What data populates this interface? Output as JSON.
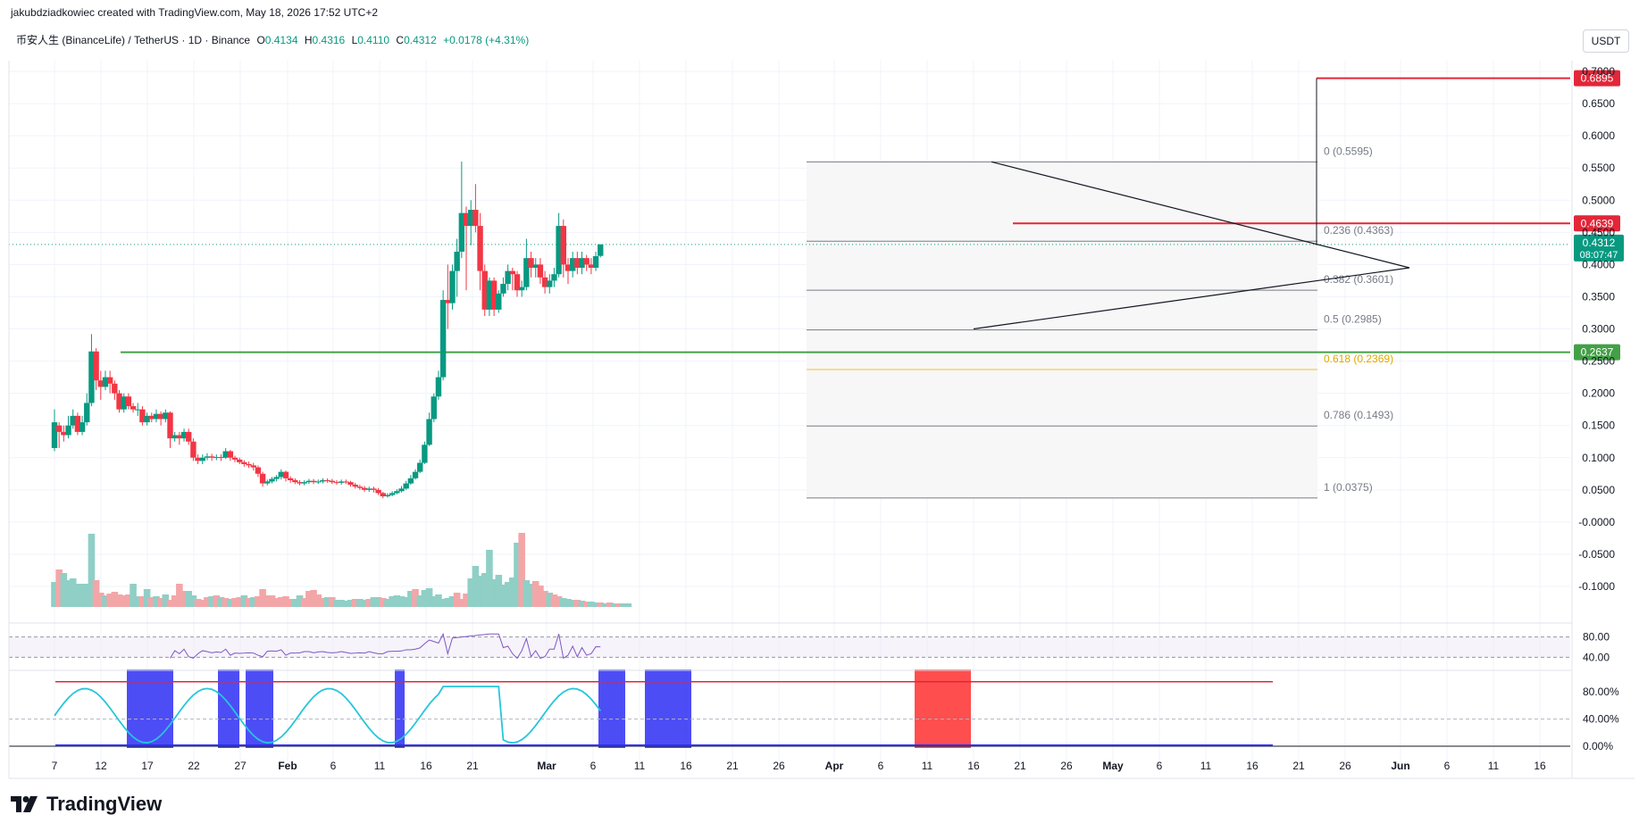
{
  "header": {
    "attribution": "jakubdziadkowiec created with TradingView.com, May 18, 2026 17:52 UTC+2"
  },
  "symbol": {
    "name": "币安人生 (BinanceLife) / TetherUS · 1D · Binance",
    "o_label": "O",
    "o": "0.4134",
    "h_label": "H",
    "h": "0.4316",
    "l_label": "L",
    "l": "0.4110",
    "c_label": "C",
    "c": "0.4312",
    "change": "+0.0178 (+4.31%)"
  },
  "currency": "USDT",
  "logo_text": "TradingView",
  "colors": {
    "up": "#26a69a",
    "up_body": "#089981",
    "down": "#f23645",
    "volume_up": "#8fcfc6",
    "volume_down": "#f3a6a8",
    "fib_gold": "#f2c12e",
    "resistance_red": "#e32638",
    "support_green": "#43a047",
    "rsi_line": "#7e57c2",
    "rsi_ma": "#f5c542",
    "osc_blue_band": "#2e2ef5",
    "osc_red_band": "#ff3b3b"
  },
  "chart_data": [
    {
      "type": "candlestick",
      "title": "",
      "x_ticks": [
        "7",
        "12",
        "17",
        "22",
        "27",
        "Feb",
        "6",
        "11",
        "16",
        "21",
        "Mar",
        "6",
        "11",
        "16",
        "21",
        "26",
        "Apr",
        "6",
        "11",
        "16",
        "21",
        "26",
        "May",
        "6",
        "11",
        "16",
        "21",
        "26",
        "Jun",
        "6",
        "11",
        "16"
      ],
      "y_ticks": [
        "0.7000",
        "0.6500",
        "0.6000",
        "0.5500",
        "0.5000",
        "0.4500",
        "0.4000",
        "0.3500",
        "0.3000",
        "0.2500",
        "0.2000",
        "0.1500",
        "0.1000",
        "0.0500",
        "-0.0000",
        "-0.0500",
        "-0.1000"
      ],
      "ylim": [
        -0.118,
        0.72
      ],
      "last_price": "0.4312",
      "countdown": "08:07:47",
      "price_levels": [
        {
          "value": 0.6895,
          "label": "0.6895",
          "color": "#e32638"
        },
        {
          "value": 0.4639,
          "label": "0.4639",
          "color": "#e32638"
        },
        {
          "value": 0.2637,
          "label": "0.2637",
          "color": "#43a047"
        }
      ],
      "fib_levels": [
        {
          "label": "0 (0.5595)",
          "value": 0.5595
        },
        {
          "label": "0.236 (0.4363)",
          "value": 0.4363
        },
        {
          "label": "0.382 (0.3601)",
          "value": 0.3601
        },
        {
          "label": "0.5 (0.2985)",
          "value": 0.2985
        },
        {
          "label": "0.618 (0.2369)",
          "value": 0.2369
        },
        {
          "label": "0.786 (0.1493)",
          "value": 0.1493
        },
        {
          "label": "1 (0.0375)",
          "value": 0.0375
        }
      ],
      "candles": [
        [
          0.115,
          0.155,
          0.175,
          0.11
        ],
        [
          0.15,
          0.14,
          0.155,
          0.115
        ],
        [
          0.14,
          0.135,
          0.15,
          0.125
        ],
        [
          0.135,
          0.15,
          0.165,
          0.13
        ],
        [
          0.15,
          0.165,
          0.175,
          0.145
        ],
        [
          0.165,
          0.14,
          0.17,
          0.135
        ],
        [
          0.14,
          0.155,
          0.165,
          0.135
        ],
        [
          0.155,
          0.185,
          0.2,
          0.15
        ],
        [
          0.185,
          0.265,
          0.292,
          0.18
        ],
        [
          0.265,
          0.22,
          0.27,
          0.205
        ],
        [
          0.22,
          0.21,
          0.235,
          0.19
        ],
        [
          0.21,
          0.225,
          0.235,
          0.205
        ],
        [
          0.225,
          0.215,
          0.235,
          0.2
        ],
        [
          0.215,
          0.2,
          0.22,
          0.19
        ],
        [
          0.2,
          0.175,
          0.205,
          0.17
        ],
        [
          0.175,
          0.195,
          0.2,
          0.17
        ],
        [
          0.195,
          0.18,
          0.2,
          0.175
        ],
        [
          0.18,
          0.175,
          0.185,
          0.17
        ],
        [
          0.175,
          0.175,
          0.185,
          0.165
        ],
        [
          0.175,
          0.155,
          0.18,
          0.15
        ],
        [
          0.155,
          0.165,
          0.17,
          0.15
        ],
        [
          0.165,
          0.16,
          0.17,
          0.155
        ],
        [
          0.16,
          0.168,
          0.175,
          0.155
        ],
        [
          0.168,
          0.16,
          0.172,
          0.15
        ],
        [
          0.16,
          0.17,
          0.175,
          0.155
        ],
        [
          0.17,
          0.13,
          0.172,
          0.115
        ],
        [
          0.13,
          0.135,
          0.14,
          0.125
        ],
        [
          0.135,
          0.13,
          0.14,
          0.12
        ],
        [
          0.13,
          0.14,
          0.145,
          0.125
        ],
        [
          0.14,
          0.125,
          0.145,
          0.12
        ],
        [
          0.125,
          0.1,
          0.13,
          0.095
        ],
        [
          0.1,
          0.095,
          0.105,
          0.09
        ],
        [
          0.095,
          0.1,
          0.105,
          0.09
        ],
        [
          0.1,
          0.102,
          0.107,
          0.096
        ],
        [
          0.102,
          0.1,
          0.106,
          0.095
        ],
        [
          0.1,
          0.101,
          0.105,
          0.096
        ],
        [
          0.101,
          0.1,
          0.105,
          0.095
        ],
        [
          0.1,
          0.11,
          0.115,
          0.098
        ],
        [
          0.11,
          0.1,
          0.112,
          0.095
        ],
        [
          0.1,
          0.097,
          0.103,
          0.093
        ],
        [
          0.097,
          0.093,
          0.1,
          0.09
        ],
        [
          0.093,
          0.09,
          0.096,
          0.086
        ],
        [
          0.09,
          0.088,
          0.094,
          0.084
        ],
        [
          0.088,
          0.085,
          0.092,
          0.08
        ],
        [
          0.085,
          0.075,
          0.088,
          0.07
        ],
        [
          0.075,
          0.06,
          0.078,
          0.055
        ],
        [
          0.06,
          0.063,
          0.066,
          0.057
        ],
        [
          0.063,
          0.067,
          0.07,
          0.06
        ],
        [
          0.067,
          0.07,
          0.073,
          0.063
        ],
        [
          0.07,
          0.078,
          0.082,
          0.066
        ],
        [
          0.078,
          0.068,
          0.08,
          0.063
        ],
        [
          0.068,
          0.065,
          0.071,
          0.061
        ],
        [
          0.065,
          0.062,
          0.068,
          0.059
        ],
        [
          0.062,
          0.06,
          0.065,
          0.057
        ],
        [
          0.06,
          0.062,
          0.065,
          0.057
        ],
        [
          0.062,
          0.064,
          0.067,
          0.059
        ],
        [
          0.064,
          0.062,
          0.067,
          0.059
        ],
        [
          0.062,
          0.063,
          0.066,
          0.059
        ],
        [
          0.063,
          0.065,
          0.068,
          0.06
        ],
        [
          0.065,
          0.064,
          0.068,
          0.061
        ],
        [
          0.064,
          0.062,
          0.067,
          0.059
        ],
        [
          0.062,
          0.061,
          0.065,
          0.058
        ],
        [
          0.061,
          0.063,
          0.066,
          0.058
        ],
        [
          0.063,
          0.062,
          0.066,
          0.059
        ],
        [
          0.062,
          0.058,
          0.064,
          0.055
        ],
        [
          0.058,
          0.055,
          0.061,
          0.052
        ],
        [
          0.055,
          0.053,
          0.058,
          0.05
        ],
        [
          0.053,
          0.05,
          0.056,
          0.047
        ],
        [
          0.05,
          0.052,
          0.055,
          0.047
        ],
        [
          0.052,
          0.05,
          0.055,
          0.046
        ],
        [
          0.05,
          0.045,
          0.053,
          0.042
        ],
        [
          0.045,
          0.04,
          0.047,
          0.037
        ],
        [
          0.04,
          0.042,
          0.045,
          0.038
        ],
        [
          0.042,
          0.045,
          0.048,
          0.04
        ],
        [
          0.045,
          0.048,
          0.051,
          0.043
        ],
        [
          0.048,
          0.052,
          0.056,
          0.046
        ],
        [
          0.052,
          0.06,
          0.064,
          0.05
        ],
        [
          0.06,
          0.068,
          0.073,
          0.058
        ],
        [
          0.068,
          0.078,
          0.082,
          0.066
        ],
        [
          0.078,
          0.092,
          0.097,
          0.076
        ],
        [
          0.092,
          0.12,
          0.125,
          0.09
        ],
        [
          0.12,
          0.16,
          0.17,
          0.118
        ],
        [
          0.16,
          0.195,
          0.2,
          0.155
        ],
        [
          0.195,
          0.225,
          0.235,
          0.19
        ],
        [
          0.225,
          0.345,
          0.36,
          0.22
        ],
        [
          0.345,
          0.34,
          0.4,
          0.3
        ],
        [
          0.34,
          0.39,
          0.4,
          0.33
        ],
        [
          0.39,
          0.42,
          0.44,
          0.35
        ],
        [
          0.42,
          0.48,
          0.56,
          0.41
        ],
        [
          0.48,
          0.46,
          0.49,
          0.36
        ],
        [
          0.46,
          0.485,
          0.5,
          0.43
        ],
        [
          0.485,
          0.46,
          0.525,
          0.45
        ],
        [
          0.46,
          0.39,
          0.48,
          0.36
        ],
        [
          0.39,
          0.33,
          0.4,
          0.32
        ],
        [
          0.33,
          0.375,
          0.38,
          0.32
        ],
        [
          0.375,
          0.33,
          0.38,
          0.32
        ],
        [
          0.33,
          0.355,
          0.36,
          0.325
        ],
        [
          0.355,
          0.37,
          0.38,
          0.35
        ],
        [
          0.37,
          0.39,
          0.4,
          0.36
        ],
        [
          0.39,
          0.385,
          0.395,
          0.36
        ],
        [
          0.385,
          0.36,
          0.39,
          0.35
        ],
        [
          0.36,
          0.365,
          0.375,
          0.35
        ],
        [
          0.365,
          0.41,
          0.44,
          0.36
        ],
        [
          0.41,
          0.395,
          0.42,
          0.38
        ],
        [
          0.395,
          0.4,
          0.41,
          0.38
        ],
        [
          0.4,
          0.38,
          0.41,
          0.37
        ],
        [
          0.38,
          0.365,
          0.39,
          0.355
        ],
        [
          0.365,
          0.375,
          0.385,
          0.355
        ],
        [
          0.375,
          0.385,
          0.395,
          0.365
        ],
        [
          0.385,
          0.46,
          0.48,
          0.38
        ],
        [
          0.46,
          0.4,
          0.47,
          0.38
        ],
        [
          0.4,
          0.39,
          0.41,
          0.37
        ],
        [
          0.39,
          0.41,
          0.42,
          0.38
        ],
        [
          0.41,
          0.395,
          0.42,
          0.385
        ],
        [
          0.395,
          0.41,
          0.42,
          0.385
        ],
        [
          0.41,
          0.4,
          0.415,
          0.39
        ],
        [
          0.4,
          0.395,
          0.41,
          0.385
        ],
        [
          0.395,
          0.413,
          0.42,
          0.39
        ],
        [
          0.4134,
          0.4312,
          0.4316,
          0.411
        ]
      ],
      "volumes": [
        [
          0.28,
          1
        ],
        [
          0.42,
          0
        ],
        [
          0.38,
          1
        ],
        [
          0.3,
          1
        ],
        [
          0.32,
          1
        ],
        [
          0.26,
          1
        ],
        [
          0.26,
          1
        ],
        [
          0.26,
          1
        ],
        [
          0.82,
          1
        ],
        [
          0.3,
          0
        ],
        [
          0.16,
          0
        ],
        [
          0.13,
          1
        ],
        [
          0.15,
          0
        ],
        [
          0.17,
          0
        ],
        [
          0.14,
          0
        ],
        [
          0.13,
          0
        ],
        [
          0.14,
          0
        ],
        [
          0.26,
          1
        ],
        [
          0.12,
          1
        ],
        [
          0.12,
          0
        ],
        [
          0.2,
          1
        ],
        [
          0.11,
          0
        ],
        [
          0.12,
          1
        ],
        [
          0.1,
          0
        ],
        [
          0.14,
          1
        ],
        [
          0.08,
          0
        ],
        [
          0.13,
          0
        ],
        [
          0.26,
          0
        ],
        [
          0.18,
          0
        ],
        [
          0.18,
          1
        ],
        [
          0.13,
          1
        ],
        [
          0.09,
          0
        ],
        [
          0.08,
          0
        ],
        [
          0.11,
          0
        ],
        [
          0.12,
          1
        ],
        [
          0.13,
          0
        ],
        [
          0.11,
          1
        ],
        [
          0.1,
          0
        ],
        [
          0.09,
          1
        ],
        [
          0.1,
          0
        ],
        [
          0.11,
          0
        ],
        [
          0.13,
          1
        ],
        [
          0.1,
          0
        ],
        [
          0.11,
          1
        ],
        [
          0.12,
          0
        ],
        [
          0.2,
          0
        ],
        [
          0.13,
          0
        ],
        [
          0.13,
          0
        ],
        [
          0.1,
          0
        ],
        [
          0.11,
          0
        ],
        [
          0.12,
          0
        ],
        [
          0.09,
          0
        ],
        [
          0.09,
          1
        ],
        [
          0.13,
          1
        ],
        [
          0.1,
          0
        ],
        [
          0.18,
          0
        ],
        [
          0.19,
          0
        ],
        [
          0.14,
          0
        ],
        [
          0.1,
          0
        ],
        [
          0.11,
          1
        ],
        [
          0.11,
          0
        ],
        [
          0.08,
          1
        ],
        [
          0.08,
          1
        ],
        [
          0.07,
          1
        ],
        [
          0.08,
          1
        ],
        [
          0.09,
          0
        ],
        [
          0.09,
          1
        ],
        [
          0.08,
          1
        ],
        [
          0.09,
          0
        ],
        [
          0.11,
          1
        ],
        [
          0.11,
          1
        ],
        [
          0.1,
          0
        ],
        [
          0.09,
          1
        ],
        [
          0.12,
          1
        ],
        [
          0.13,
          1
        ],
        [
          0.12,
          1
        ],
        [
          0.11,
          1
        ],
        [
          0.18,
          1
        ],
        [
          0.2,
          0
        ],
        [
          0.13,
          1
        ],
        [
          0.19,
          1
        ],
        [
          0.21,
          1
        ],
        [
          0.12,
          1
        ],
        [
          0.14,
          1
        ],
        [
          0.09,
          1
        ],
        [
          0.1,
          1
        ],
        [
          0.12,
          1
        ],
        [
          0.16,
          0
        ],
        [
          0.09,
          0
        ],
        [
          0.15,
          0
        ],
        [
          0.32,
          1
        ],
        [
          0.46,
          1
        ],
        [
          0.35,
          1
        ],
        [
          0.38,
          1
        ],
        [
          0.64,
          1
        ],
        [
          0.31,
          1
        ],
        [
          0.36,
          1
        ],
        [
          0.25,
          1
        ],
        [
          0.28,
          1
        ],
        [
          0.33,
          1
        ],
        [
          0.72,
          1
        ],
        [
          0.83,
          0
        ],
        [
          0.3,
          1
        ],
        [
          0.26,
          1
        ],
        [
          0.29,
          0
        ],
        [
          0.24,
          0
        ],
        [
          0.18,
          0
        ],
        [
          0.16,
          1
        ],
        [
          0.14,
          0
        ],
        [
          0.12,
          0
        ],
        [
          0.1,
          1
        ],
        [
          0.09,
          1
        ],
        [
          0.08,
          1
        ],
        [
          0.08,
          0
        ],
        [
          0.07,
          1
        ],
        [
          0.06,
          0
        ],
        [
          0.06,
          1
        ],
        [
          0.05,
          1
        ],
        [
          0.05,
          0
        ],
        [
          0.04,
          1
        ],
        [
          0.05,
          0
        ],
        [
          0.04,
          1
        ],
        [
          0.04,
          0
        ],
        [
          0.04,
          1
        ],
        [
          0.04,
          1
        ]
      ],
      "triangle": {
        "top_line": [
          {
            "x": "Apr 18",
            "y": 0.5595
          },
          {
            "x": "May 24",
            "y": 0.395
          }
        ],
        "bottom_line": [
          {
            "x": "Apr 16",
            "y": 0.3
          },
          {
            "x": "May 24",
            "y": 0.395
          }
        ],
        "measured_move_target": 0.6895
      }
    },
    {
      "type": "line",
      "title": "",
      "y_ticks": [
        "80.00",
        "40.00"
      ],
      "ylim": [
        30,
        90
      ],
      "series": []
    },
    {
      "type": "line",
      "title": "",
      "y_ticks": [
        "80.00%",
        "40.00%",
        "0.00%"
      ],
      "ylim": [
        0,
        100
      ],
      "series": []
    }
  ]
}
